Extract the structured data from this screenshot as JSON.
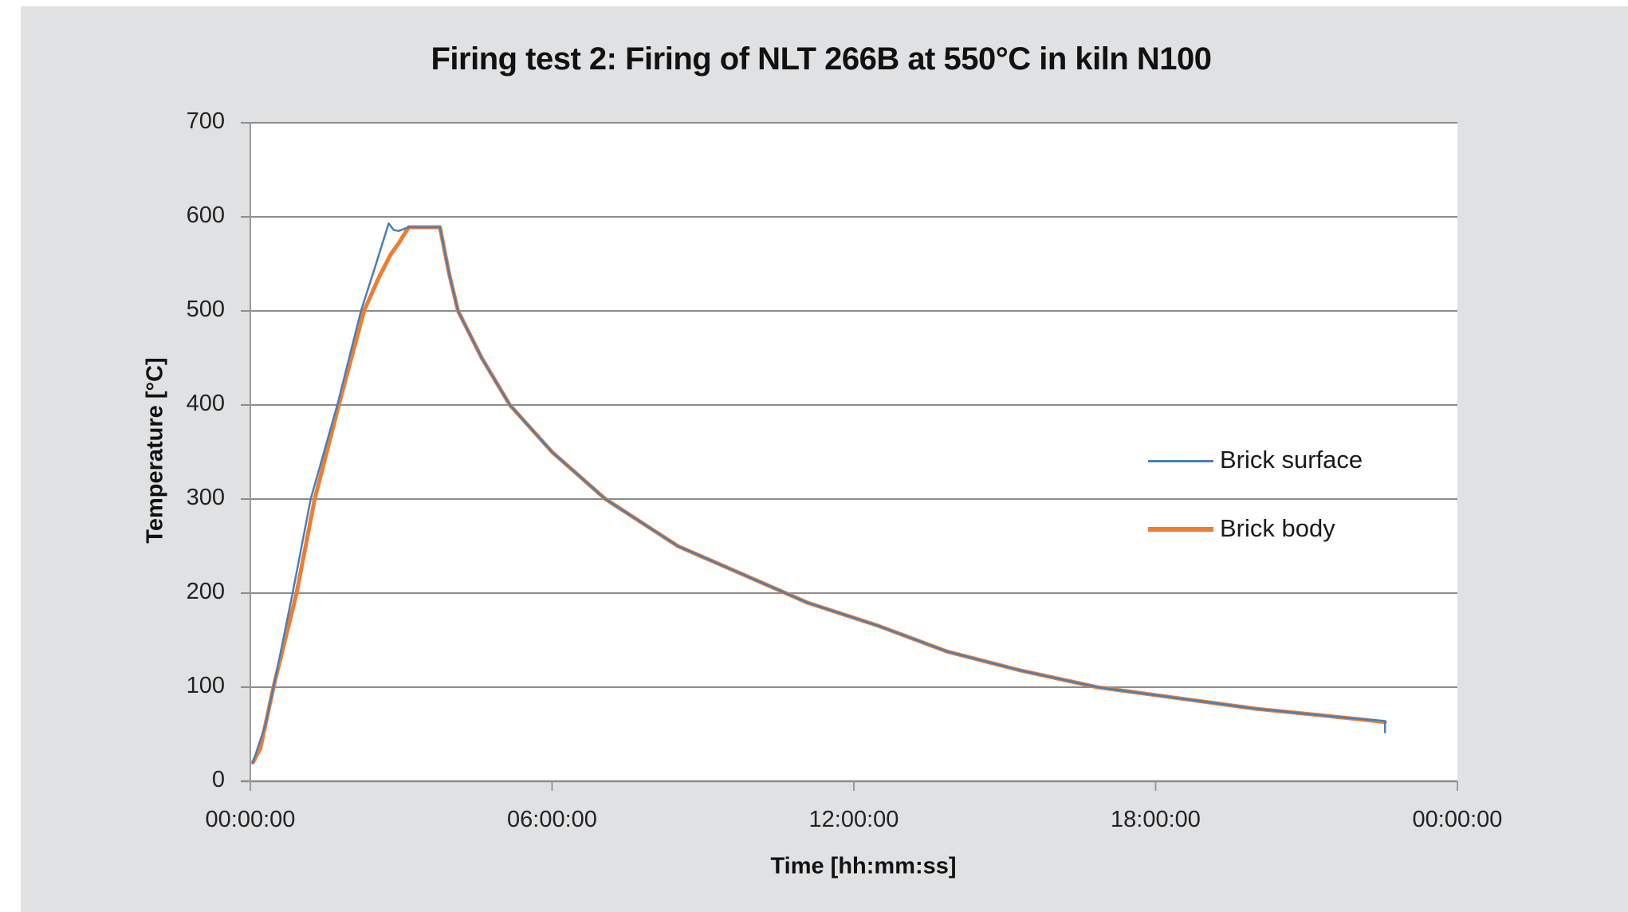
{
  "chart_data": {
    "type": "line",
    "title": "Firing test 2: Firing of NLT 266B at 550°C in kiln N100",
    "xlabel": "Time [hh:mm:ss]",
    "ylabel": "Temperature [°C]",
    "x_unit": "hours",
    "xlim": [
      0,
      24
    ],
    "ylim": [
      0,
      700
    ],
    "yticks": [
      0,
      100,
      200,
      300,
      400,
      500,
      600,
      700
    ],
    "ytick_labels": [
      "0",
      "100",
      "200",
      "300",
      "400",
      "500",
      "600",
      "700"
    ],
    "xticks": [
      0,
      6,
      12,
      18,
      24
    ],
    "xtick_labels": [
      "00:00:00",
      "06:00:00",
      "12:00:00",
      "18:00:00",
      "00:00:00"
    ],
    "grid": {
      "horizontal": true,
      "vertical": false
    },
    "legend_position": "right-center inside plot",
    "series": [
      {
        "name": "Brick surface",
        "color": "#4a7ebb",
        "points": [
          [
            0.05,
            20
          ],
          [
            0.3,
            60
          ],
          [
            0.5,
            110
          ],
          [
            0.84,
            200
          ],
          [
            1.2,
            300
          ],
          [
            1.73,
            400
          ],
          [
            2.2,
            500
          ],
          [
            2.5,
            550
          ],
          [
            2.75,
            593
          ],
          [
            2.85,
            586
          ],
          [
            2.95,
            585
          ],
          [
            3.15,
            589
          ],
          [
            3.77,
            589
          ],
          [
            3.95,
            540
          ],
          [
            4.13,
            500
          ],
          [
            4.6,
            450
          ],
          [
            5.16,
            400
          ],
          [
            6.0,
            350
          ],
          [
            7.06,
            300
          ],
          [
            8.5,
            250
          ],
          [
            10.86,
            195
          ],
          [
            11.07,
            190
          ],
          [
            12.5,
            165
          ],
          [
            13.85,
            138
          ],
          [
            15.3,
            118
          ],
          [
            16.84,
            100
          ],
          [
            18.5,
            88
          ],
          [
            20.0,
            77
          ],
          [
            21.5,
            69
          ],
          [
            22.56,
            64
          ],
          [
            22.56,
            52
          ]
        ]
      },
      {
        "name": "Brick body",
        "color": "#ed7d31",
        "points": [
          [
            0.05,
            20
          ],
          [
            0.2,
            35
          ],
          [
            0.46,
            100
          ],
          [
            0.92,
            200
          ],
          [
            1.28,
            300
          ],
          [
            1.76,
            400
          ],
          [
            2.26,
            500
          ],
          [
            2.55,
            535
          ],
          [
            2.79,
            560
          ],
          [
            2.95,
            572
          ],
          [
            3.15,
            589
          ],
          [
            3.77,
            589
          ],
          [
            3.95,
            540
          ],
          [
            4.13,
            500
          ],
          [
            4.6,
            450
          ],
          [
            5.16,
            400
          ],
          [
            6.0,
            350
          ],
          [
            7.06,
            300
          ],
          [
            8.5,
            250
          ],
          [
            10.86,
            195
          ],
          [
            11.07,
            190
          ],
          [
            12.5,
            165
          ],
          [
            13.85,
            138
          ],
          [
            15.3,
            118
          ],
          [
            16.84,
            100
          ],
          [
            18.5,
            88
          ],
          [
            20.0,
            77
          ],
          [
            21.5,
            69
          ],
          [
            22.56,
            63
          ]
        ]
      }
    ]
  },
  "legend": {
    "items": [
      {
        "label": "Brick surface",
        "color": "#4a7ebb"
      },
      {
        "label": "Brick body",
        "color": "#ed7d31"
      }
    ]
  },
  "colors": {
    "panel_background": "#e0e1e3",
    "plot_background": "#ffffff",
    "gridline": "#8c8c8c"
  }
}
